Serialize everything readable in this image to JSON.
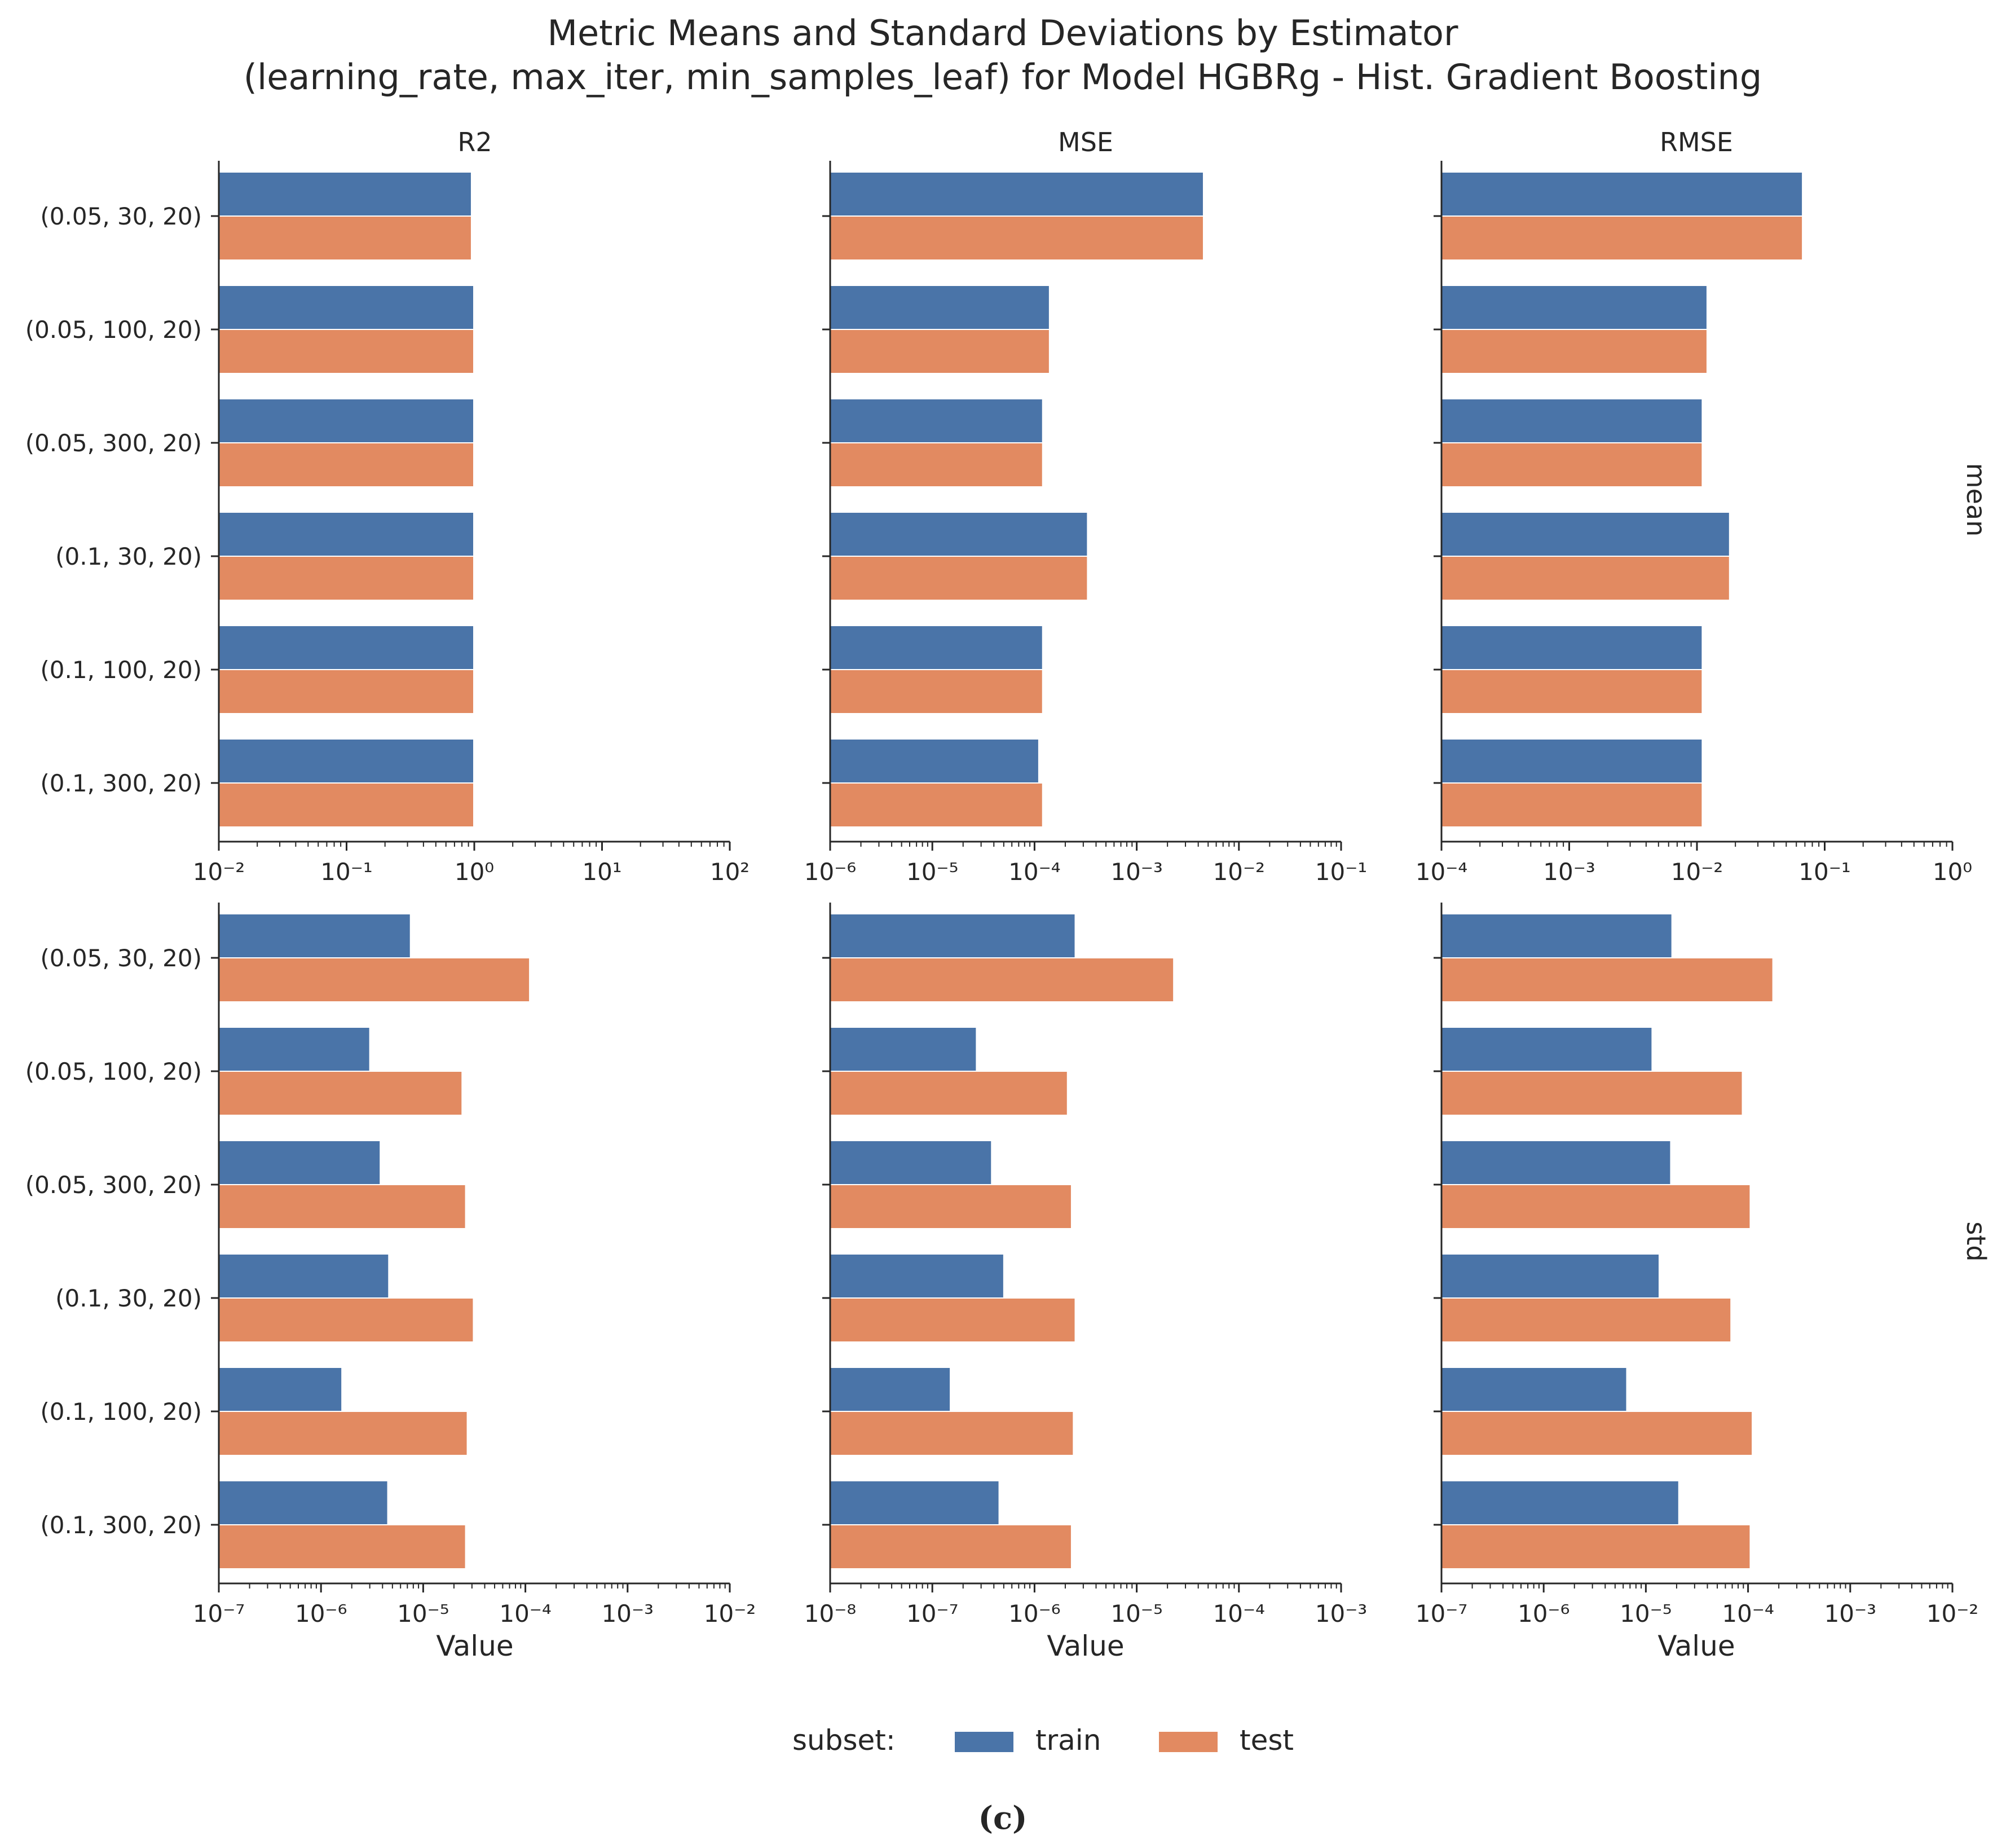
{
  "figure": {
    "title_line1": "Metric Means and Standard Deviations by Estimator",
    "title_line2": "(learning_rate, max_iter, min_samples_leaf) for Model HGBRg - Hist. Gradient Boosting",
    "caption": "(c)",
    "legend": {
      "title": "subset:",
      "entries": [
        "train",
        "test"
      ]
    },
    "row_labels": [
      "mean",
      "std"
    ],
    "col_labels": [
      "R2",
      "MSE",
      "RMSE"
    ],
    "xlabel": "Value"
  },
  "colors": {
    "train": "#4a74a8",
    "test": "#e28a61",
    "axis": "#262626",
    "text": "#262626"
  },
  "chart_data": [
    {
      "type": "bar",
      "orientation": "horizontal",
      "row": "mean",
      "metric": "R2",
      "xscale": "log",
      "xlim": [
        0.01,
        100.0
      ],
      "tick_exponents": [
        -2,
        -1,
        0,
        1,
        2
      ],
      "categories": [
        "(0.05, 30, 20)",
        "(0.05, 100, 20)",
        "(0.05, 300, 20)",
        "(0.1, 30, 20)",
        "(0.1, 100, 20)",
        "(0.1, 300, 20)"
      ],
      "series": [
        {
          "name": "train",
          "values": [
            0.95,
            0.99,
            0.99,
            0.99,
            0.99,
            0.99
          ]
        },
        {
          "name": "test",
          "values": [
            0.95,
            0.99,
            0.99,
            0.99,
            0.99,
            0.99
          ]
        }
      ]
    },
    {
      "type": "bar",
      "orientation": "horizontal",
      "row": "mean",
      "metric": "MSE",
      "xscale": "log",
      "xlim": [
        1e-06,
        0.1
      ],
      "tick_exponents": [
        -6,
        -5,
        -4,
        -3,
        -2,
        -1
      ],
      "categories": [
        "(0.05, 30, 20)",
        "(0.05, 100, 20)",
        "(0.05, 300, 20)",
        "(0.1, 30, 20)",
        "(0.1, 100, 20)",
        "(0.1, 300, 20)"
      ],
      "series": [
        {
          "name": "train",
          "values": [
            0.0045,
            0.00014,
            0.00012,
            0.00033,
            0.00012,
            0.00011
          ]
        },
        {
          "name": "test",
          "values": [
            0.0045,
            0.00014,
            0.00012,
            0.00033,
            0.00012,
            0.00012
          ]
        }
      ]
    },
    {
      "type": "bar",
      "orientation": "horizontal",
      "row": "mean",
      "metric": "RMSE",
      "xscale": "log",
      "xlim": [
        0.0001,
        1.0
      ],
      "tick_exponents": [
        -4,
        -3,
        -2,
        -1,
        0
      ],
      "categories": [
        "(0.05, 30, 20)",
        "(0.05, 100, 20)",
        "(0.05, 300, 20)",
        "(0.1, 30, 20)",
        "(0.1, 100, 20)",
        "(0.1, 300, 20)"
      ],
      "series": [
        {
          "name": "train",
          "values": [
            0.067,
            0.012,
            0.011,
            0.018,
            0.011,
            0.011
          ]
        },
        {
          "name": "test",
          "values": [
            0.067,
            0.012,
            0.011,
            0.018,
            0.011,
            0.011
          ]
        }
      ]
    },
    {
      "type": "bar",
      "orientation": "horizontal",
      "row": "std",
      "metric": "R2",
      "xscale": "log",
      "xlim": [
        1e-07,
        0.01
      ],
      "tick_exponents": [
        -7,
        -6,
        -5,
        -4,
        -3,
        -2
      ],
      "categories": [
        "(0.05, 30, 20)",
        "(0.05, 100, 20)",
        "(0.05, 300, 20)",
        "(0.1, 30, 20)",
        "(0.1, 100, 20)",
        "(0.1, 300, 20)"
      ],
      "series": [
        {
          "name": "train",
          "values": [
            7.5e-06,
            3e-06,
            3.8e-06,
            4.6e-06,
            1.6e-06,
            4.5e-06
          ]
        },
        {
          "name": "test",
          "values": [
            0.00011,
            2.4e-05,
            2.6e-05,
            3.1e-05,
            2.7e-05,
            2.6e-05
          ]
        }
      ]
    },
    {
      "type": "bar",
      "orientation": "horizontal",
      "row": "std",
      "metric": "MSE",
      "xscale": "log",
      "xlim": [
        1e-08,
        0.001
      ],
      "tick_exponents": [
        -8,
        -7,
        -6,
        -5,
        -4,
        -3
      ],
      "categories": [
        "(0.05, 30, 20)",
        "(0.05, 100, 20)",
        "(0.05, 300, 20)",
        "(0.1, 30, 20)",
        "(0.1, 100, 20)",
        "(0.1, 300, 20)"
      ],
      "series": [
        {
          "name": "train",
          "values": [
            2.5e-06,
            2.7e-07,
            3.8e-07,
            5e-07,
            1.5e-07,
            4.5e-07
          ]
        },
        {
          "name": "test",
          "values": [
            2.3e-05,
            2.1e-06,
            2.3e-06,
            2.5e-06,
            2.4e-06,
            2.3e-06
          ]
        }
      ]
    },
    {
      "type": "bar",
      "orientation": "horizontal",
      "row": "std",
      "metric": "RMSE",
      "xscale": "log",
      "xlim": [
        1e-07,
        0.01
      ],
      "tick_exponents": [
        -7,
        -6,
        -5,
        -4,
        -3,
        -2
      ],
      "categories": [
        "(0.05, 30, 20)",
        "(0.05, 100, 20)",
        "(0.05, 300, 20)",
        "(0.1, 30, 20)",
        "(0.1, 100, 20)",
        "(0.1, 300, 20)"
      ],
      "series": [
        {
          "name": "train",
          "values": [
            1.8e-05,
            1.15e-05,
            1.75e-05,
            1.35e-05,
            6.5e-06,
            2.1e-05
          ]
        },
        {
          "name": "test",
          "values": [
            0.000175,
            8.8e-05,
            0.000105,
            6.8e-05,
            0.00011,
            0.000105
          ]
        }
      ]
    }
  ]
}
